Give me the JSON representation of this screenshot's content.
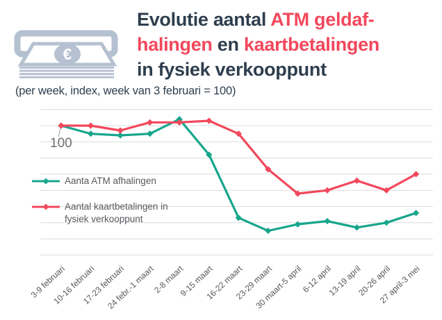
{
  "colors": {
    "navy": "#2E3E4E",
    "red": "#F2485C",
    "teal": "#16A68C",
    "grid": "#DCDCDC",
    "icon": "#B5C1D1",
    "axis_text": "#55585C",
    "baseline_text": "#6E6E6E"
  },
  "header": {
    "title_lines": [
      [
        {
          "text": "Evolutie aantal ",
          "color": "navy"
        },
        {
          "text": "ATM geldaf-",
          "color": "red"
        }
      ],
      [
        {
          "text": "halingen",
          "color": "red"
        },
        {
          "text": " en ",
          "color": "navy"
        },
        {
          "text": "kaartbetalingen",
          "color": "red"
        }
      ],
      [
        {
          "text": "in fysiek verkooppunt",
          "color": "navy"
        }
      ]
    ],
    "subtitle": "(per week, index, week van 3 februari = 100)"
  },
  "icon": {
    "name": "atm-cash-withdrawal-icon",
    "currency_symbol": "€"
  },
  "chart_data": {
    "type": "line",
    "title": "Evolutie aantal ATM geldafhalingen en kaartbetalingen in fysiek verkooppunt",
    "subtitle": "(per week, index, week van 3 februari = 100)",
    "categories": [
      "3-9 februari",
      "10-16 februari",
      "17-23 februari",
      "24 febr.-1 maart",
      "2-8 maart",
      "9-15 maart",
      "16-22 maart",
      "23-29 maart",
      "30 maart-5 april",
      "6-12 april",
      "13-19 april",
      "20-26 april",
      "27 april-3 mei"
    ],
    "series": [
      {
        "name": "Aanta ATM afhalingen",
        "color": "#16A68C",
        "values": [
          100,
          95,
          94,
          95,
          104,
          82,
          43,
          35,
          39,
          41,
          37,
          40,
          46
        ]
      },
      {
        "name": "Aantal kaartbetalingen in fysiek verkooppunt",
        "color": "#F2485C",
        "values": [
          100,
          100,
          97,
          102,
          102,
          103,
          95,
          73,
          58,
          60,
          66,
          60,
          70
        ]
      }
    ],
    "baseline_label": "100",
    "baseline_value": 100,
    "ylim": [
      20,
      110
    ],
    "grid_step": 10,
    "grid": true,
    "legend_position": "middle-left",
    "xlabel": "",
    "ylabel": ""
  }
}
